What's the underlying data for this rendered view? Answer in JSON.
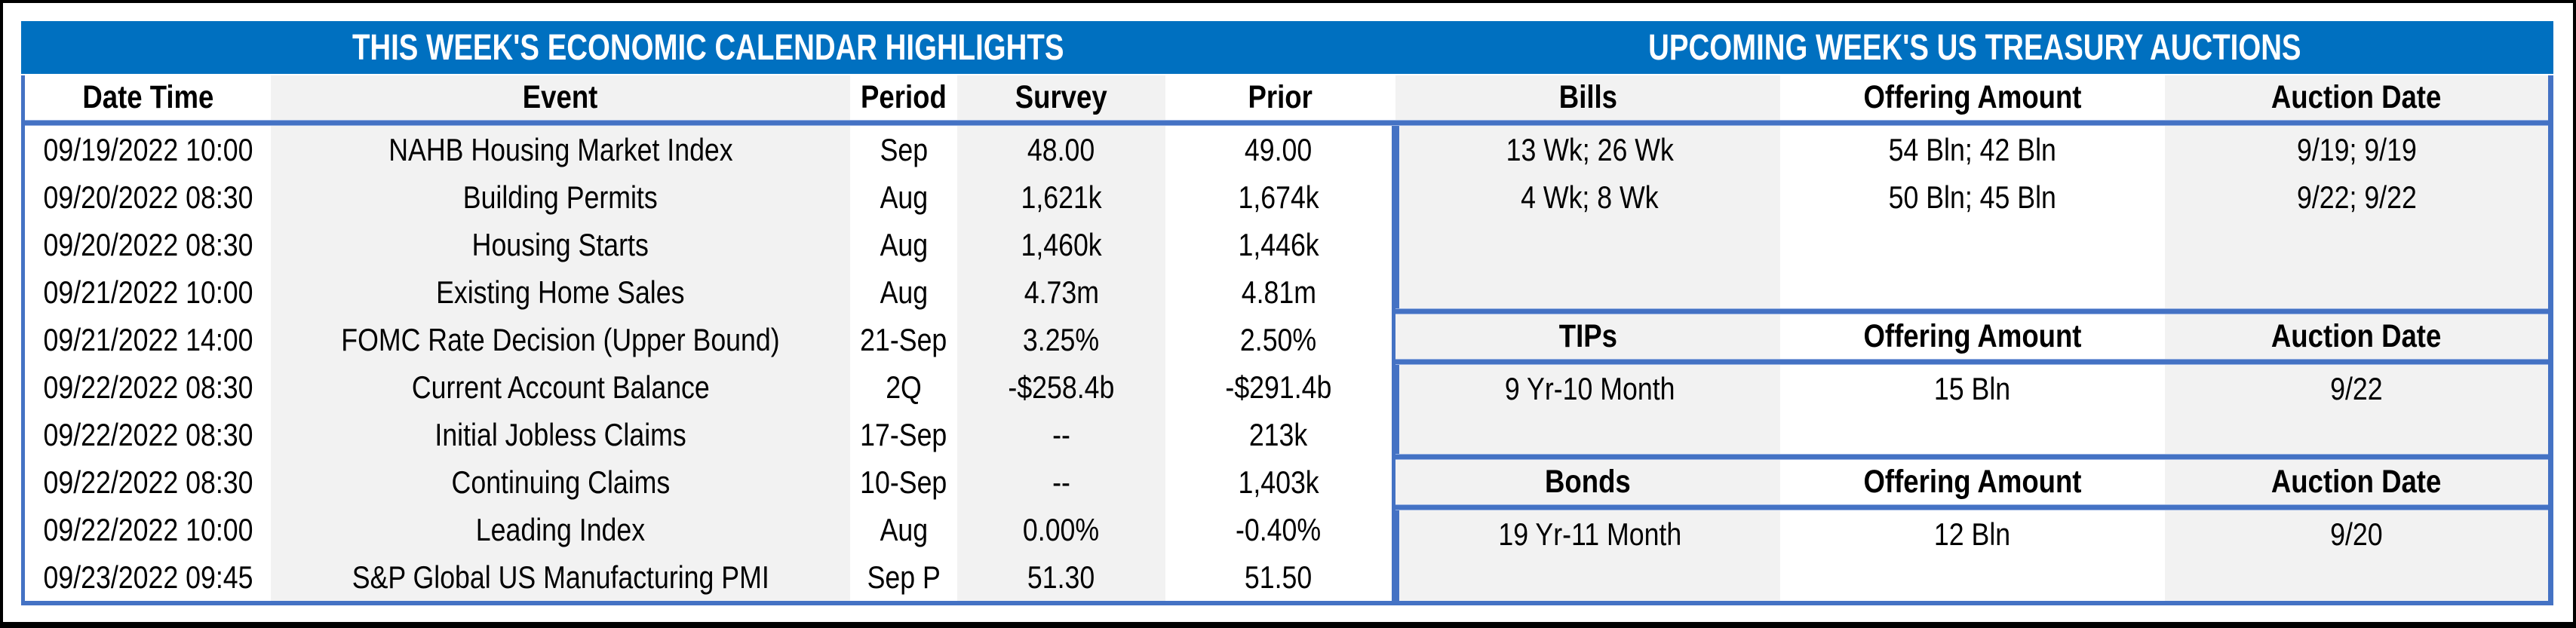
{
  "left": {
    "title": "THIS WEEK'S ECONOMIC CALENDAR HIGHLIGHTS",
    "columns": [
      "Date Time",
      "Event",
      "Period",
      "Survey",
      "Prior"
    ],
    "rows": [
      [
        "09/19/2022 10:00",
        "NAHB Housing Market Index",
        "Sep",
        "48.00",
        "49.00"
      ],
      [
        "09/20/2022 08:30",
        "Building Permits",
        "Aug",
        "1,621k",
        "1,674k"
      ],
      [
        "09/20/2022 08:30",
        "Housing Starts",
        "Aug",
        "1,460k",
        "1,446k"
      ],
      [
        "09/21/2022 10:00",
        "Existing Home Sales",
        "Aug",
        "4.73m",
        "4.81m"
      ],
      [
        "09/21/2022 14:00",
        "FOMC Rate Decision (Upper Bound)",
        "21-Sep",
        "3.25%",
        "2.50%"
      ],
      [
        "09/22/2022 08:30",
        "Current Account Balance",
        "2Q",
        "-$258.4b",
        "-$291.4b"
      ],
      [
        "09/22/2022 08:30",
        "Initial Jobless Claims",
        "17-Sep",
        "--",
        "213k"
      ],
      [
        "09/22/2022 08:30",
        "Continuing Claims",
        "10-Sep",
        "--",
        "1,403k"
      ],
      [
        "09/22/2022 10:00",
        "Leading Index",
        "Aug",
        "0.00%",
        "-0.40%"
      ],
      [
        "09/23/2022 09:45",
        "S&P Global US Manufacturing PMI",
        "Sep P",
        "51.30",
        "51.50"
      ]
    ]
  },
  "right": {
    "title": "UPCOMING WEEK'S US TREASURY AUCTIONS",
    "sections": [
      {
        "name": "Bills",
        "columns": [
          "Bills",
          "Offering Amount",
          "Auction Date"
        ],
        "rows": [
          [
            "13 Wk; 26 Wk",
            "54 Bln; 42 Bln",
            "9/19; 9/19"
          ],
          [
            "4 Wk; 8 Wk",
            "50 Bln; 45 Bln",
            "9/22; 9/22"
          ]
        ]
      },
      {
        "name": "TIPs",
        "columns": [
          "TIPs",
          "Offering Amount",
          "Auction Date"
        ],
        "rows": [
          [
            "9 Yr-10 Month",
            "15 Bln",
            "9/22"
          ]
        ]
      },
      {
        "name": "Bonds",
        "columns": [
          "Bonds",
          "Offering Amount",
          "Auction Date"
        ],
        "rows": [
          [
            "19 Yr-11 Month",
            "12 Bln",
            "9/20"
          ]
        ]
      }
    ]
  },
  "colors": {
    "title_band": "#0070C0",
    "table_border": "#4472C4",
    "stripe": "#F2F2F2",
    "title_text": "#FFFFFF",
    "cell_text": "#000000"
  }
}
